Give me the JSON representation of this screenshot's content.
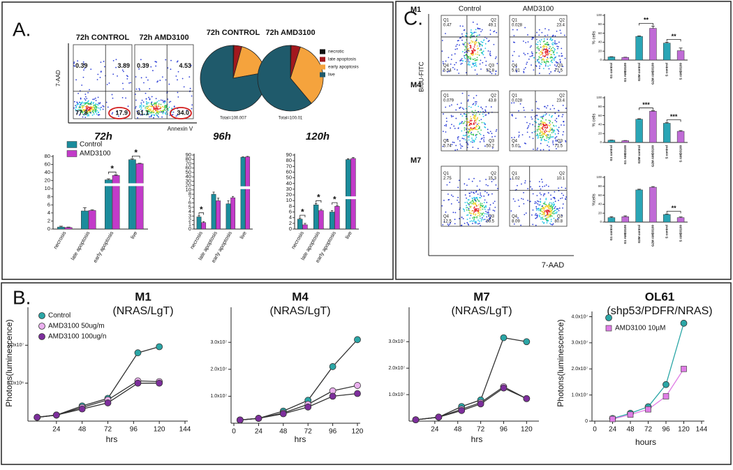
{
  "panel_labels": [
    "A.",
    "B.",
    "C."
  ],
  "chart_data": [
    {
      "type": "flow",
      "x_label": "Annexin V",
      "y_label": "7-AAD",
      "plots": [
        {
          "title": "72h CONTROL",
          "quadrants": [
            "0.39",
            "3.89",
            "77.8",
            "17.9"
          ]
        },
        {
          "title": "72h AMD3100",
          "quadrants": [
            "0.39",
            "4.53",
            "61.1",
            "34.0"
          ]
        }
      ]
    },
    {
      "type": "pie",
      "categories": [
        "necrotic",
        "late apoptosis",
        "early apoptosis",
        "live"
      ],
      "colors": [
        "#111111",
        "#a3191e",
        "#f5a33d",
        "#1f5a6b"
      ],
      "series": [
        {
          "name": "72h CONTROL",
          "values": [
            0.39,
            3.89,
            17.9,
            77.8
          ],
          "total_label": "Total=100.007"
        },
        {
          "name": "72h AMD3100",
          "values": [
            0.39,
            4.53,
            34.0,
            61.1
          ],
          "total_label": "Total=100.01"
        }
      ]
    },
    {
      "type": "bar",
      "title": "72h",
      "categories": [
        "necrosis",
        "late apoptosis",
        "early apoptosis",
        "live"
      ],
      "series": [
        {
          "name": "Control",
          "color": "#1b8c9c",
          "values": [
            0.5,
            4.5,
            22,
            72
          ],
          "errors": [
            0.2,
            0.8,
            2.5,
            2
          ]
        },
        {
          "name": "AMD3100",
          "color": "#c23bc9",
          "values": [
            0.4,
            4.6,
            33,
            62
          ],
          "errors": [
            0.1,
            0.2,
            1.5,
            1
          ]
        }
      ],
      "ylim": [
        0,
        80
      ],
      "yticks": [
        0,
        2,
        4,
        6,
        8,
        10,
        20,
        40,
        60,
        80
      ],
      "axis_break": [
        10,
        20
      ],
      "annotations": [
        {
          "label": "*",
          "categories": [
            "early apoptosis"
          ]
        },
        {
          "label": "*",
          "categories": [
            "live"
          ]
        }
      ]
    },
    {
      "type": "bar",
      "title": "96h",
      "categories": [
        "necrosis",
        "late apoptosis",
        "early apoptosis",
        "live"
      ],
      "series": [
        {
          "color": "#1b8c9c",
          "values": [
            2.8,
            8,
            5.8,
            85
          ],
          "errors": [
            0.3,
            1,
            0.7,
            1
          ]
        },
        {
          "color": "#c23bc9",
          "values": [
            1.5,
            6.5,
            7.2,
            86
          ],
          "errors": [
            0.2,
            0.6,
            0.3,
            1
          ]
        }
      ],
      "ylim": [
        0,
        90
      ],
      "yticks": [
        0,
        1,
        2,
        3,
        4,
        5,
        6,
        7,
        8,
        10,
        20,
        30,
        40,
        50,
        60,
        70,
        80,
        90
      ],
      "axis_break": [
        10,
        20
      ],
      "annotations": [
        {
          "label": "*",
          "categories": [
            "necrosis"
          ]
        }
      ]
    },
    {
      "type": "bar",
      "title": "120h",
      "categories": [
        "necrosis",
        "late apoptosis",
        "early apoptosis",
        "live"
      ],
      "series": [
        {
          "color": "#1b8c9c",
          "values": [
            3.5,
            8.5,
            6,
            82
          ],
          "errors": [
            0.4,
            0.5,
            0.5,
            1.5
          ]
        },
        {
          "color": "#c23bc9",
          "values": [
            1.5,
            6.5,
            8,
            84
          ],
          "errors": [
            0.5,
            0.4,
            0.3,
            1.5
          ]
        }
      ],
      "ylim": [
        0,
        90
      ],
      "yticks": [
        0,
        2,
        4,
        6,
        8,
        10,
        20,
        30,
        40,
        50,
        60,
        70,
        80,
        90
      ],
      "axis_break": [
        10,
        20
      ],
      "annotations": [
        {
          "label": "*",
          "categories": [
            "necrosis"
          ]
        },
        {
          "label": "*",
          "categories": [
            "late apoptosis"
          ]
        },
        {
          "label": "*",
          "categories": [
            "early apoptosis"
          ]
        }
      ]
    },
    {
      "type": "line",
      "title": "M1",
      "subtitle": "(NRAS/LgT)",
      "x_label": "hrs",
      "y_label": "Photons(luminescence)",
      "line_color": "#333333",
      "legend": true,
      "xlim": [
        0,
        144
      ],
      "xticks": [
        24,
        48,
        72,
        96,
        120,
        144
      ],
      "ylim": [
        0,
        15000000
      ],
      "yticks": [
        {
          "value": 5000000,
          "label": "5.0x10⁶"
        },
        {
          "value": 10000000,
          "label": "1.0x10⁷"
        }
      ],
      "x": [
        6,
        24,
        48,
        72,
        100,
        120
      ],
      "series": [
        {
          "name": "Control",
          "color": "#2ba6a6",
          "marker": "circle",
          "values": [
            500000,
            800000,
            2000000,
            3000000,
            9000000,
            9800000
          ]
        },
        {
          "name": "AMD3100 50ug/m",
          "color": "#eab0ee",
          "marker": "circle",
          "values": [
            500000,
            800000,
            1800000,
            2800000,
            5300000,
            5200000
          ]
        },
        {
          "name": "AMD3100 100ug/n",
          "color": "#7d2e9c",
          "marker": "circle",
          "values": [
            500000,
            800000,
            1600000,
            2400000,
            5000000,
            5000000
          ]
        }
      ]
    },
    {
      "type": "line",
      "title": "M4",
      "subtitle": "(NRAS/LgT)",
      "x_label": "hrs",
      "line_color": "#333333",
      "xlim": [
        0,
        120
      ],
      "xticks": [
        0,
        24,
        48,
        72,
        96,
        120
      ],
      "ylim": [
        0,
        43000000
      ],
      "yticks": [
        {
          "value": 10000000,
          "label": "1.0x10⁷"
        },
        {
          "value": 20000000,
          "label": "2.0x10⁷"
        },
        {
          "value": 30000000,
          "label": "3.0x10⁷"
        }
      ],
      "x": [
        6,
        24,
        48,
        72,
        96,
        120
      ],
      "series": [
        {
          "color": "#2ba6a6",
          "marker": "circle",
          "values": [
            1200000,
            1800000,
            4500000,
            8500000,
            21000000,
            31000000
          ]
        },
        {
          "color": "#eab0ee",
          "marker": "circle",
          "values": [
            1200000,
            1800000,
            3800000,
            7000000,
            12000000,
            14000000
          ]
        },
        {
          "color": "#7d2e9c",
          "marker": "circle",
          "values": [
            1200000,
            1800000,
            3500000,
            6000000,
            10000000,
            11000000
          ]
        }
      ]
    },
    {
      "type": "line",
      "title": "M7",
      "subtitle": "(NRAS/LgT)",
      "x_label": "hrs",
      "line_color": "#333333",
      "xlim": [
        0,
        130
      ],
      "xticks": [
        24,
        48,
        72,
        96,
        120
      ],
      "ylim": [
        0,
        43000000
      ],
      "yticks": [
        {
          "value": 10000000,
          "label": "1.0x10⁷"
        },
        {
          "value": 20000000,
          "label": "2.0x10⁷"
        },
        {
          "value": 30000000,
          "label": "3.0x10⁷"
        }
      ],
      "x": [
        4,
        28,
        52,
        72,
        96,
        120
      ],
      "series": [
        {
          "color": "#2ba6a6",
          "marker": "circle",
          "values": [
            500000,
            1500000,
            5500000,
            8000000,
            31500000,
            30000000
          ]
        },
        {
          "color": "#eab0ee",
          "marker": "circle",
          "values": [
            500000,
            1500000,
            4500000,
            7000000,
            13000000,
            8500000
          ]
        },
        {
          "color": "#7d2e9c",
          "marker": "circle",
          "values": [
            500000,
            1500000,
            4000000,
            6500000,
            12500000,
            8500000
          ]
        }
      ]
    },
    {
      "type": "line",
      "title": "OL61",
      "subtitle": "(shp53/PDFR/NRAS)",
      "x_label": "hours",
      "y_label": "Photons(luminescence)",
      "legend": true,
      "xlim": [
        0,
        144
      ],
      "xticks": [
        0,
        24,
        48,
        72,
        96,
        120,
        144
      ],
      "ylim": [
        0,
        42000000
      ],
      "yticks": [
        0,
        {
          "value": 10000000,
          "label": "1.0x10⁷"
        },
        {
          "value": 20000000,
          "label": "2.0x10⁷"
        },
        {
          "value": 30000000,
          "label": "3.0x10⁷"
        },
        {
          "value": 40000000,
          "label": "4.0x10⁷"
        }
      ],
      "x": [
        24,
        48,
        72,
        96,
        120
      ],
      "series": [
        {
          "color": "#2ba6a6",
          "marker": "circle",
          "values": [
            1000000,
            3000000,
            5500000,
            14000000,
            37500000
          ]
        },
        {
          "name": "AMD3100 10µM",
          "color": "#e07de6",
          "marker": "square",
          "values": [
            800000,
            2500000,
            4500000,
            9500000,
            20000000
          ]
        }
      ]
    },
    {
      "type": "flow",
      "x_label": "7-AAD",
      "y_label": "BrdU-FITC",
      "columns": [
        "Control",
        "AMD3100"
      ],
      "rows": [
        "M1",
        "M4",
        "M7"
      ],
      "plots": [
        {
          "quadrants": [
            {
              "name": "Q1",
              "value": "0.47"
            },
            {
              "name": "Q2",
              "value": "49.1"
            },
            {
              "name": "Q4",
              "value": "5.54"
            },
            {
              "name": "Q3",
              "value": "52.8"
            }
          ]
        },
        {
          "quadrants": [
            {
              "name": "Q1",
              "value": "0.028"
            },
            {
              "name": "Q2",
              "value": "23.4"
            },
            {
              "name": "Q4",
              "value": "5.01"
            },
            {
              "name": "Q3",
              "value": "71.5"
            }
          ]
        },
        {
          "quadrants": [
            {
              "name": "Q1",
              "value": "0.079"
            },
            {
              "name": "Q2",
              "value": "43.8"
            },
            {
              "name": "Q4",
              "value": "5.74"
            },
            {
              "name": "Q3",
              "value": "50.2"
            }
          ]
        },
        {
          "quadrants": [
            {
              "name": "Q1",
              "value": "0.028"
            },
            {
              "name": "Q2",
              "value": "23.4"
            },
            {
              "name": "Q4",
              "value": "5.01"
            },
            {
              "name": "Q3",
              "value": "71.5"
            }
          ]
        },
        {
          "quadrants": [
            {
              "name": "Q1",
              "value": "2.75"
            },
            {
              "name": "Q2",
              "value": "15.3"
            },
            {
              "name": "Q4",
              "value": "12.5"
            },
            {
              "name": "Q3",
              "value": "69.5"
            }
          ]
        },
        {
          "quadrants": [
            {
              "name": "Q1",
              "value": "1.02"
            },
            {
              "name": "Q2",
              "value": "10.1"
            },
            {
              "name": "Q4",
              "value": "8.09"
            },
            {
              "name": "Q3",
              "value": "80.8"
            }
          ]
        }
      ]
    },
    {
      "type": "bar",
      "y_label": "% cells",
      "categories": [
        "G1 control",
        "G1 AMD3100",
        "G2M control",
        "G2M AMD3100",
        "S control",
        "S AMD3100"
      ],
      "values": [
        7,
        6,
        53,
        71,
        38,
        21
      ],
      "errors": [
        0.5,
        0.5,
        1,
        5,
        2,
        6
      ],
      "colors": [
        "#2aa5b5",
        "#c06bd6",
        "#2aa5b5",
        "#c06bd6",
        "#2aa5b5",
        "#c06bd6"
      ],
      "ylim": [
        0,
        100
      ],
      "yticks": [
        0,
        20,
        40,
        60,
        80,
        100
      ],
      "annotations": [
        {
          "label": "**",
          "categories": [
            "G2M control",
            "G2M AMD3100"
          ]
        },
        {
          "label": "**",
          "categories": [
            "S control",
            "S AMD3100"
          ]
        }
      ]
    },
    {
      "type": "bar",
      "y_label": "% cells",
      "categories": [
        "G1 control",
        "G1 AMD3100",
        "G2M control",
        "G2M AMD3100",
        "S control",
        "S AMD3100"
      ],
      "values": [
        5,
        4,
        52,
        70,
        43,
        25
      ],
      "errors": [
        0.5,
        0.5,
        1,
        1,
        1.5,
        1.5
      ],
      "colors": [
        "#2aa5b5",
        "#c06bd6",
        "#2aa5b5",
        "#c06bd6",
        "#2aa5b5",
        "#c06bd6"
      ],
      "ylim": [
        0,
        100
      ],
      "yticks": [
        0,
        20,
        40,
        60,
        80,
        100
      ],
      "annotations": [
        {
          "label": "***",
          "categories": [
            "G2M control",
            "G2M AMD3100"
          ]
        },
        {
          "label": "***",
          "categories": [
            "S control",
            "S AMD3100"
          ]
        }
      ]
    },
    {
      "type": "bar",
      "y_label": "%cells",
      "categories": [
        "G1 control",
        "G1 AMD3100",
        "G2M control",
        "G2M AMD3100",
        "S control",
        "S AMD3100"
      ],
      "values": [
        10,
        12,
        72,
        78,
        17,
        10
      ],
      "errors": [
        2,
        2,
        1.5,
        1.5,
        1,
        1.5
      ],
      "colors": [
        "#2aa5b5",
        "#c06bd6",
        "#2aa5b5",
        "#c06bd6",
        "#2aa5b5",
        "#c06bd6"
      ],
      "ylim": [
        0,
        100
      ],
      "yticks": [
        0,
        20,
        40,
        60,
        80,
        100
      ],
      "annotations": [
        {
          "label": "**",
          "categories": [
            "S control",
            "S AMD3100"
          ]
        }
      ]
    }
  ]
}
